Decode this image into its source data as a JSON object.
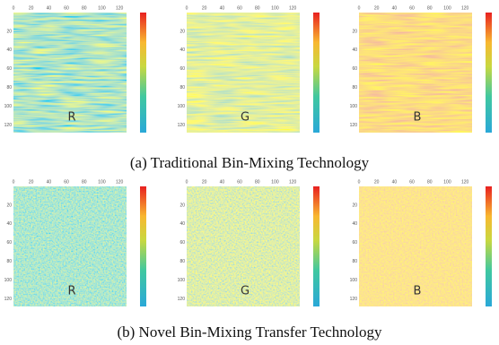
{
  "figure": {
    "xticks": [
      0,
      20,
      40,
      60,
      80,
      100,
      120
    ],
    "yticks": [
      20,
      40,
      60,
      80,
      100,
      120
    ],
    "panels": [
      {
        "caption": "(a) Traditional Bin-Mixing Technology",
        "maps": [
          {
            "label": "R"
          },
          {
            "label": "G"
          },
          {
            "label": "B"
          }
        ]
      },
      {
        "caption": "(b) Novel Bin-Mixing Transfer Technology",
        "maps": [
          {
            "label": "R"
          },
          {
            "label": "G"
          },
          {
            "label": "B"
          }
        ]
      }
    ]
  }
}
